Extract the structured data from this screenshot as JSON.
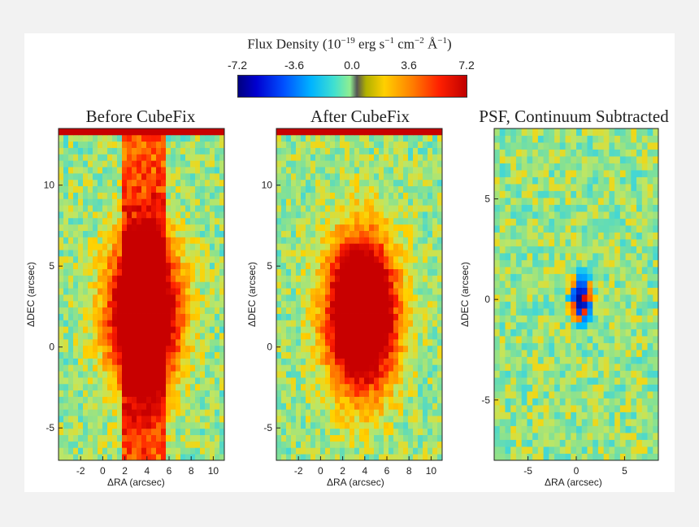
{
  "colorbar": {
    "title_main": "Flux Density (10",
    "title_exp1": "−19",
    "title_mid1": " erg s",
    "title_exp2": "−1",
    "title_mid2": " cm",
    "title_exp3": "−2",
    "title_mid3": " Å",
    "title_exp4": "−1",
    "title_end": ")",
    "ticks": [
      "-7.2",
      "-3.6",
      "0.0",
      "3.6",
      "7.2"
    ],
    "colormap": [
      "#000080",
      "#0050ff",
      "#00b4ff",
      "#40e0d0",
      "#90ee90",
      "#555555",
      "#ffd000",
      "#ff8000",
      "#ff2000",
      "#c00000"
    ]
  },
  "chart_data": [
    {
      "type": "heatmap",
      "title": "Before CubeFix",
      "xlabel": "ΔRA (arcsec)",
      "ylabel": "ΔDEC (arcsec)",
      "xlim": [
        -4,
        11
      ],
      "ylim": [
        -7,
        13.5
      ],
      "xticks": [
        "-2",
        "0",
        "2",
        "4",
        "6",
        "8",
        "10"
      ],
      "yticks": [
        "-5",
        "0",
        "5",
        "10"
      ],
      "source_center": [
        3.7,
        2.1
      ],
      "source_peak": 7.2,
      "vertical_stripe": true
    },
    {
      "type": "heatmap",
      "title": "After CubeFix",
      "xlabel": "ΔRA (arcsec)",
      "ylabel": "ΔDEC (arcsec)",
      "xlim": [
        -4,
        11
      ],
      "ylim": [
        -7,
        13.5
      ],
      "xticks": [
        "-2",
        "0",
        "2",
        "4",
        "6",
        "8",
        "10"
      ],
      "yticks": [
        "-5",
        "0",
        "5",
        "10"
      ],
      "source_center": [
        3.7,
        2.1
      ],
      "source_peak": 7.2,
      "vertical_stripe": false
    },
    {
      "type": "heatmap",
      "title": "PSF, Continuum Subtracted",
      "xlabel": "ΔRA (arcsec)",
      "ylabel": "ΔDEC (arcsec)",
      "xlim": [
        -8.5,
        8.5
      ],
      "ylim": [
        -8,
        8.5
      ],
      "xticks": [
        "-5",
        "0",
        "5"
      ],
      "yticks": [
        "-5",
        "0",
        "5"
      ],
      "source_center": [
        0.5,
        0
      ],
      "source_peak": 7.2,
      "vertical_stripe": false
    }
  ]
}
